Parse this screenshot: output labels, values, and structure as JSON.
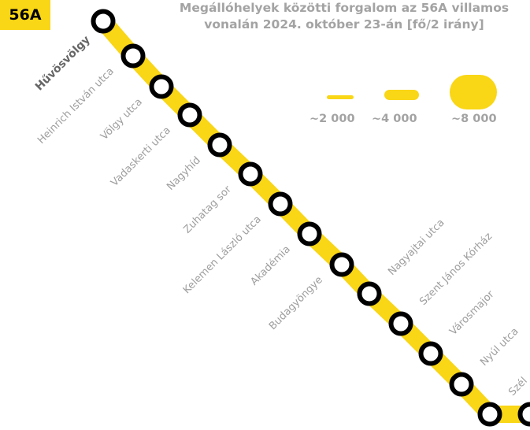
{
  "line": {
    "badge": "56A",
    "color": "#f9d616"
  },
  "title": {
    "line1": "Megállóhelyek közötti forgalom az 56A villamos",
    "line2": "vonalán 2024. október 23-án [fő/2 irány]"
  },
  "legend": [
    {
      "label": "~2 000",
      "passengers": 2000
    },
    {
      "label": "~4 000",
      "passengers": 4000
    },
    {
      "label": "~8 000",
      "passengers": 8000
    }
  ],
  "stops": [
    {
      "name": "Hűvösvölgy",
      "terminus": true
    },
    {
      "name": "Heinrich István utca"
    },
    {
      "name": "Völgy utca"
    },
    {
      "name": "Vadaskerti utca"
    },
    {
      "name": "Nagyhíd"
    },
    {
      "name": "Zuhatag sor"
    },
    {
      "name": "Kelemen László utca"
    },
    {
      "name": "Akadémia"
    },
    {
      "name": "Budagyöngye"
    },
    {
      "name": "Nagyajtai utca"
    },
    {
      "name": "Szent János Kórház"
    },
    {
      "name": "Városmajor"
    },
    {
      "name": "Nyúl utca"
    },
    {
      "name": "Szél"
    },
    {
      "name": ""
    }
  ]
}
